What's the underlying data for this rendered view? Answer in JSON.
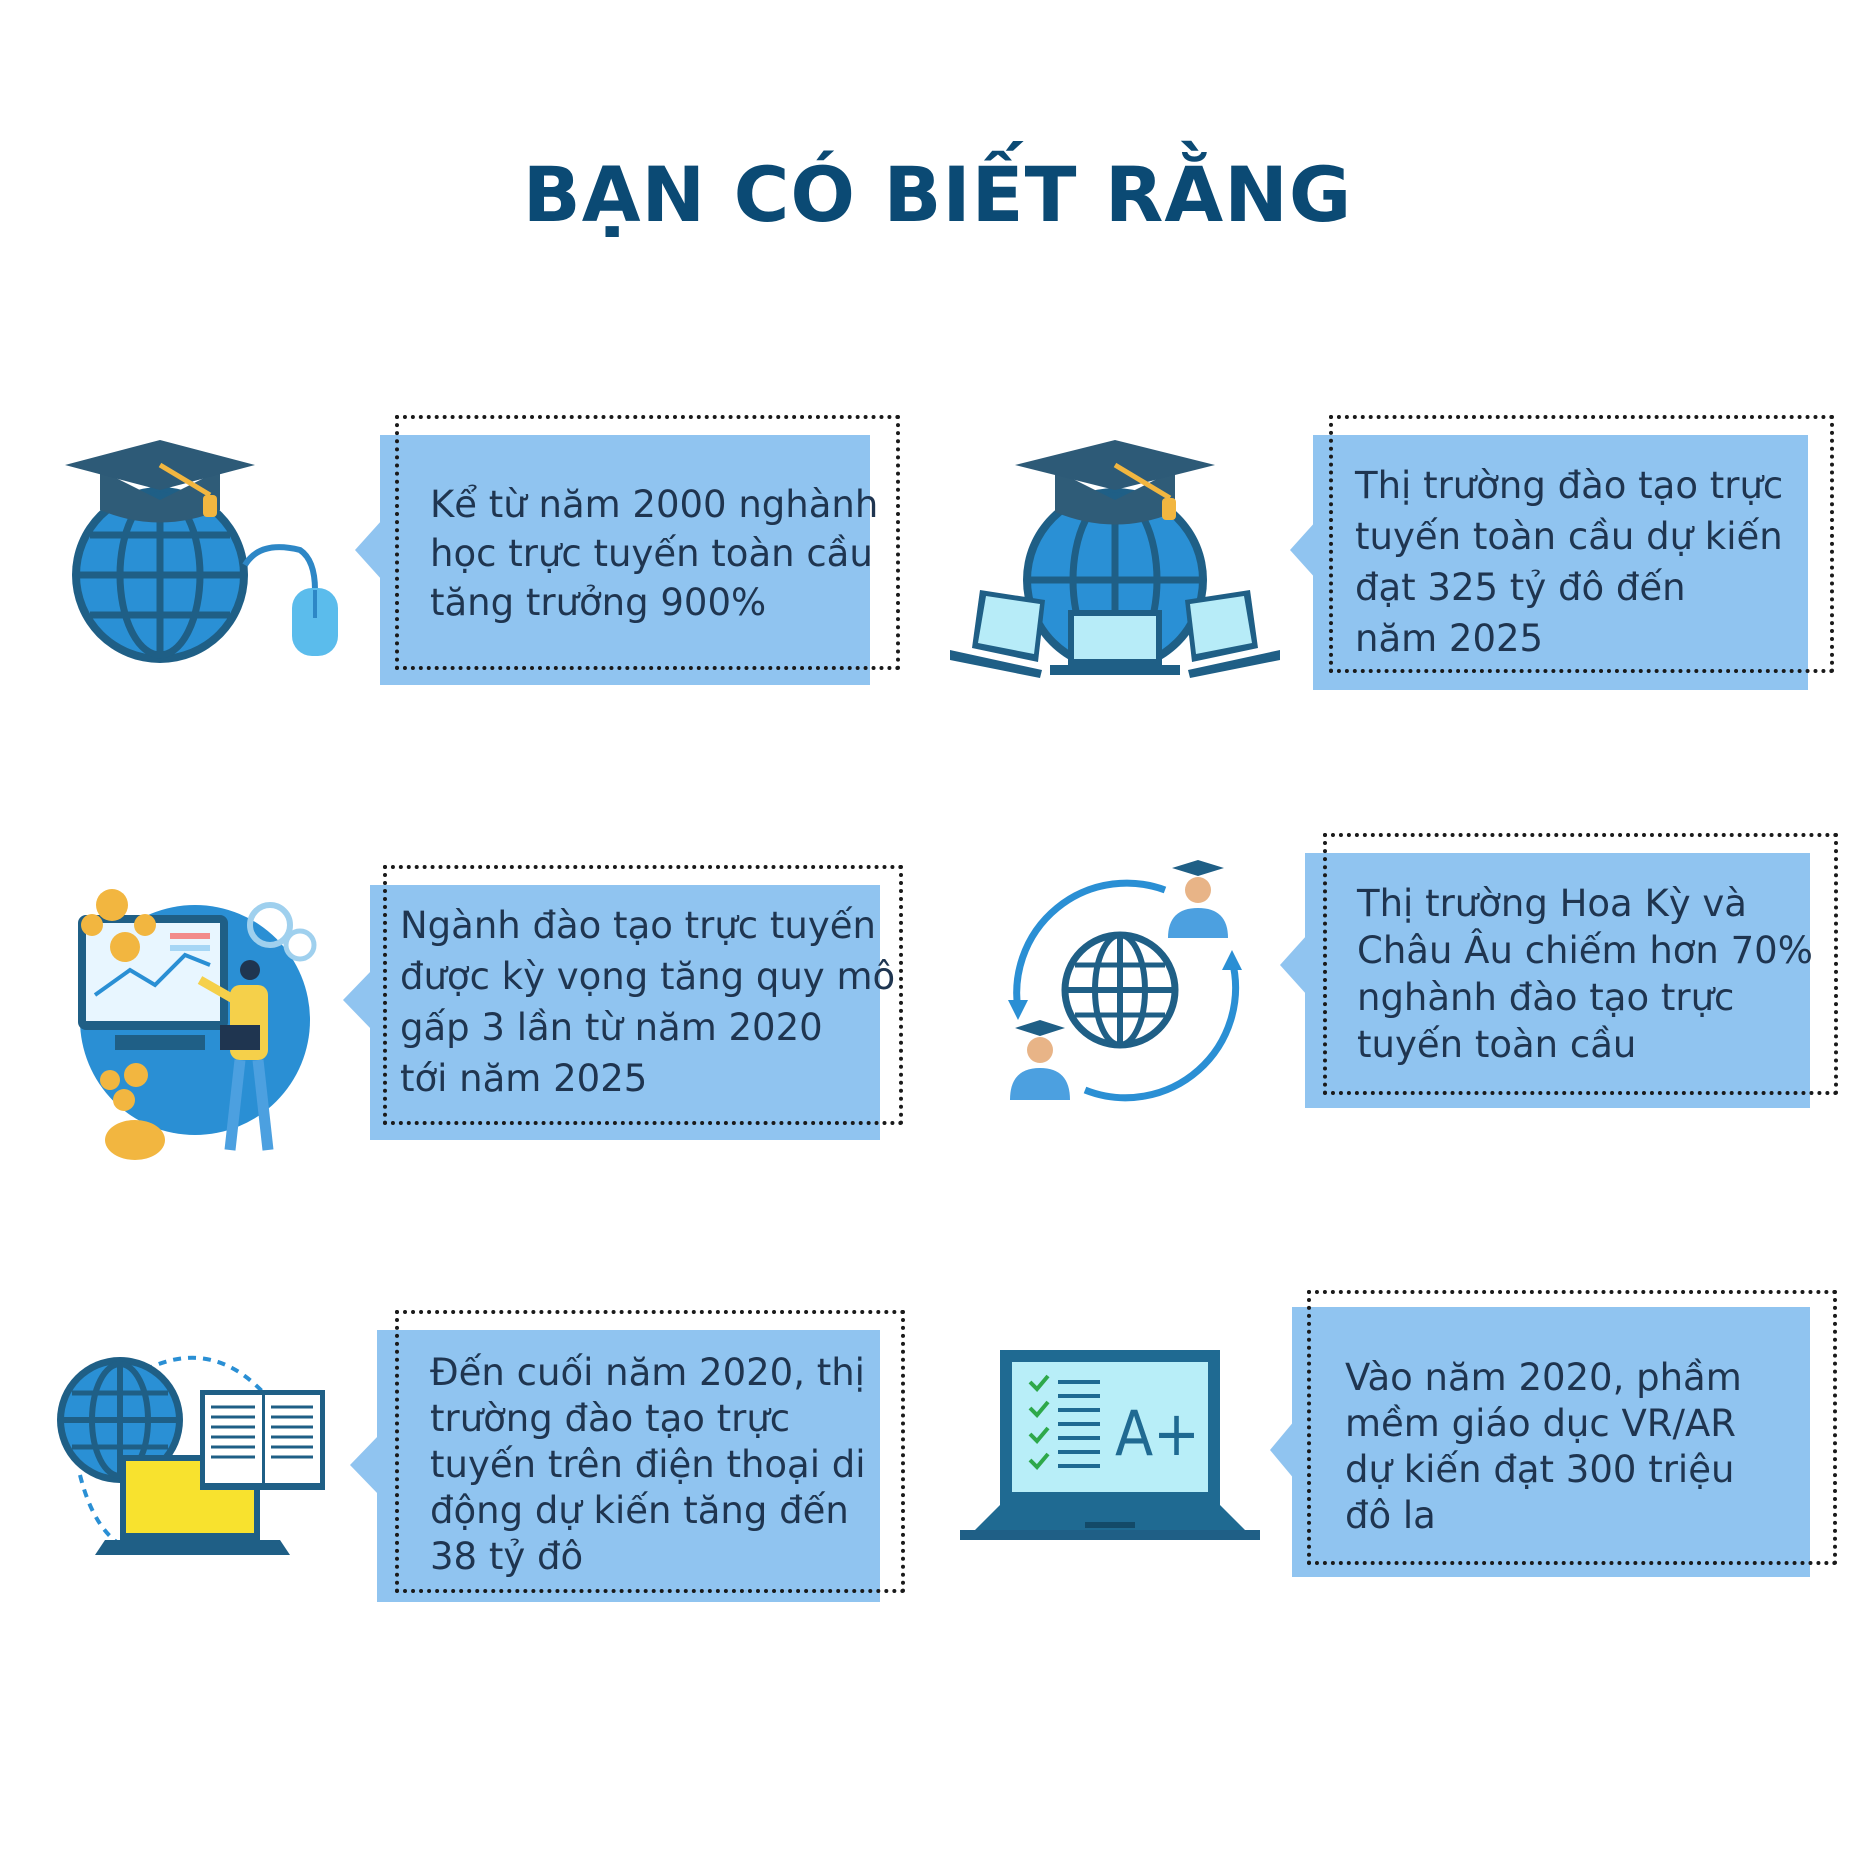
{
  "title": "BẠN CÓ BIẾT RẰNG",
  "colors": {
    "title": "#0b4a74",
    "box_fill": "#90c4f0",
    "globe": "#2a8fd4",
    "dark_blue": "#1e5f86",
    "cap": "#2e5c78",
    "yellow": "#f5c342"
  },
  "facts": [
    {
      "icon": "graduation-globe-mouse-icon",
      "lines": [
        "Kể từ năm 2000 nghành",
        "học trực tuyến toàn cầu",
        "tăng trưởng 900%"
      ]
    },
    {
      "icon": "graduation-globe-laptops-icon",
      "lines": [
        "Thị trường đào tạo trực",
        "tuyến toàn cầu dự kiến",
        "đạt 325 tỷ đô đến",
        "năm 2025"
      ]
    },
    {
      "icon": "presenter-chart-coins-icon",
      "lines": [
        "Ngành đào tạo trực tuyến",
        "được kỳ vọng tăng quy mô",
        "gấp 3 lần từ năm 2020",
        "tới năm  2025"
      ]
    },
    {
      "icon": "globe-graduates-cycle-icon",
      "lines": [
        "Thị trường Hoa Kỳ và",
        "Châu Âu chiếm hơn 70%",
        "nghành đào tạo trực",
        "tuyến toàn cầu"
      ]
    },
    {
      "icon": "globe-laptop-book-icon",
      "lines": [
        "Đến cuối năm 2020, thị",
        "trường đào tạo trực",
        "tuyến trên điện thoại di",
        "động dự kiến tăng đến",
        "38 tỷ đô"
      ]
    },
    {
      "icon": "laptop-grade-a-plus-icon",
      "lines": [
        "Vào năm 2020, phầm",
        "mềm giáo dục VR/AR",
        "dự kiến đạt 300 triệu",
        "đô la"
      ],
      "grade": "A+"
    }
  ]
}
